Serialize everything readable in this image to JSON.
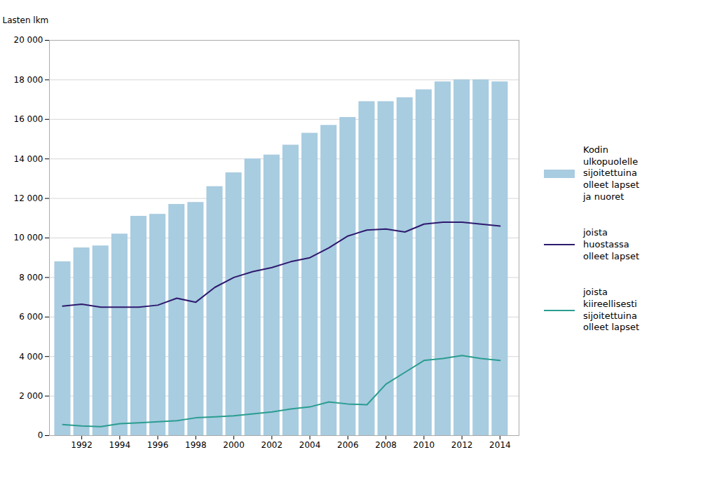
{
  "chart_data": {
    "type": "bar",
    "x": [
      1991,
      1992,
      1993,
      1994,
      1995,
      1996,
      1997,
      1998,
      1999,
      2000,
      2001,
      2002,
      2003,
      2004,
      2005,
      2006,
      2007,
      2008,
      2009,
      2010,
      2011,
      2012,
      2013,
      2014
    ],
    "series": [
      {
        "name": "Kodin\nulkopuolelle\nsijoitettuina\nolleet lapset\nja nuoret",
        "type": "bar",
        "color": "#a8cce0",
        "values": [
          8800,
          9500,
          9600,
          10200,
          11100,
          11200,
          11700,
          11800,
          12600,
          13300,
          14000,
          14200,
          14700,
          15300,
          15700,
          16100,
          16900,
          16900,
          17100,
          17500,
          17900,
          18000,
          18000,
          17900
        ]
      },
      {
        "name": "joista\nhuostassa\nolleet lapset",
        "type": "line",
        "color": "#2e1a6e",
        "values": [
          6550,
          6650,
          6500,
          6500,
          6500,
          6600,
          6950,
          6750,
          7500,
          8000,
          8300,
          8500,
          8800,
          9000,
          9500,
          10100,
          10400,
          10450,
          10300,
          10700,
          10800,
          10800,
          10700,
          10600
        ]
      },
      {
        "name": "joista\nkiireellisesti\nsijoitettuina\nolleet lapset",
        "type": "line",
        "color": "#2a9d8f",
        "values": [
          560,
          490,
          450,
          600,
          650,
          700,
          750,
          900,
          950,
          1000,
          1100,
          1200,
          1350,
          1450,
          1700,
          1600,
          1560,
          2600,
          3200,
          3800,
          3900,
          4050,
          3900,
          3800
        ]
      }
    ],
    "ylabel": "Lasten lkm",
    "xlim": [
      1990.3,
      2015.0
    ],
    "xticks": [
      1992,
      1994,
      1996,
      1998,
      2000,
      2002,
      2004,
      2006,
      2008,
      2010,
      2012,
      2014
    ],
    "ylim": [
      0,
      20000
    ],
    "yticks": [
      0,
      {
        "value": 2000,
        "label": "2 000"
      },
      {
        "value": 4000,
        "label": "4 000"
      },
      {
        "value": 6000,
        "label": "6 000"
      },
      {
        "value": 8000,
        "label": "8 000"
      },
      {
        "value": 10000,
        "label": "10 000"
      },
      {
        "value": 12000,
        "label": "12 000"
      },
      {
        "value": 14000,
        "label": "14 000"
      },
      {
        "value": 16000,
        "label": "16 000"
      },
      {
        "value": 18000,
        "label": "18 000"
      },
      {
        "value": 20000,
        "label": "20 000"
      }
    ],
    "grid": true,
    "legend": "right"
  }
}
